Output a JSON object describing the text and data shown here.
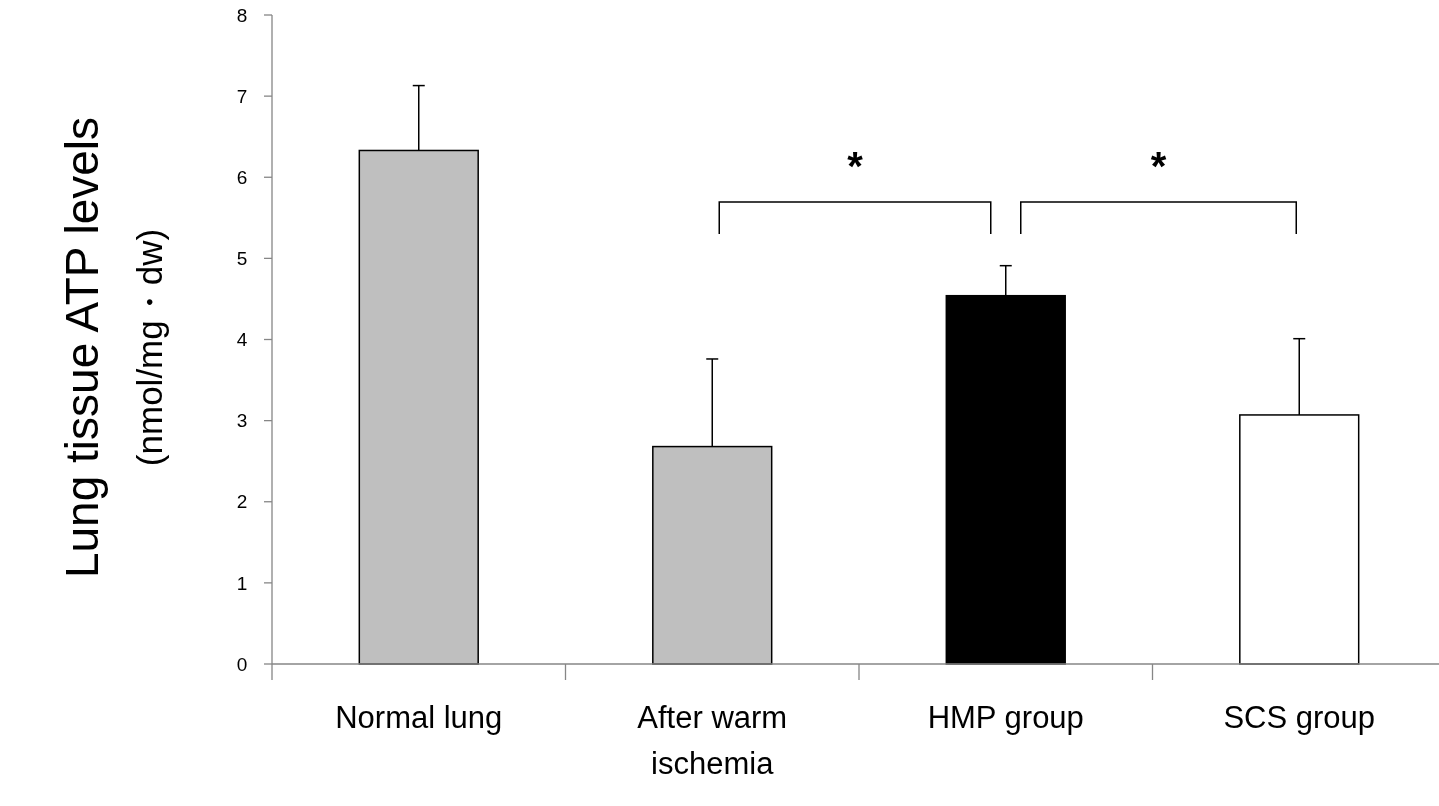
{
  "chart_data": {
    "type": "bar",
    "ylabel": "Lung tissue ATP levels\n(nmol/mg・dw)",
    "categories": [
      "Normal lung",
      "After warm ischemia",
      "HMP group",
      "SCS group"
    ],
    "values": [
      6.33,
      2.68,
      4.54,
      3.07
    ],
    "errors": [
      [
        6.33,
        7.13
      ],
      [
        2.68,
        3.76
      ],
      [
        4.54,
        4.91
      ],
      [
        3.07,
        4.01
      ]
    ],
    "colors": [
      "#bfbfbf",
      "#bfbfbf",
      "#000000",
      "#ffffff"
    ],
    "ylim": [
      0,
      8
    ],
    "yticks": [
      0,
      1,
      2,
      3,
      4,
      5,
      6,
      7,
      8
    ],
    "grid": false,
    "annotations": [
      "*",
      "*"
    ]
  }
}
